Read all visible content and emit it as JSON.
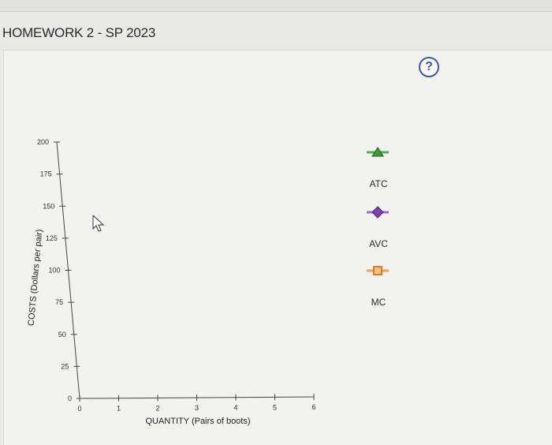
{
  "page": {
    "title": "HOMEWORK 2 - SP 2023"
  },
  "help": {
    "label": "?"
  },
  "legend": [
    {
      "name": "ATC",
      "marker": "triangle",
      "color": "#3f9a3a",
      "line_color": "#4fb24a"
    },
    {
      "name": "AVC",
      "marker": "diamond",
      "color": "#7b3fb0",
      "line_color": "#9c6ad0"
    },
    {
      "name": "MC",
      "marker": "square",
      "color": "#e07a1a",
      "line_color": "#f0a050"
    }
  ],
  "chart_data": {
    "type": "line",
    "xlabel": "QUANTITY (Pairs of boots)",
    "ylabel": "COSTS (Dollars per pair)",
    "xlim": [
      0,
      6
    ],
    "ylim": [
      0,
      200
    ],
    "x_ticks": [
      0,
      1,
      2,
      3,
      4,
      5,
      6
    ],
    "y_ticks": [
      0,
      25,
      50,
      75,
      100,
      125,
      150,
      175,
      200
    ],
    "grid": false,
    "series": []
  }
}
